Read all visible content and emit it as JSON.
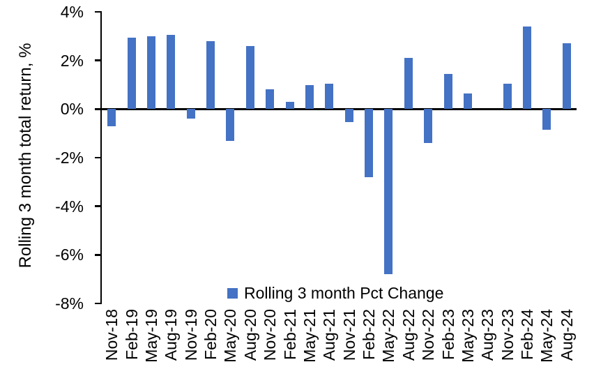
{
  "chart_data": {
    "type": "bar",
    "title": "",
    "xlabel": "",
    "ylabel": "Rolling 3 month total return, %",
    "series_name": "Rolling 3 month Pct Change",
    "legend_position": "bottom-center",
    "grid": false,
    "ylim": [
      -8,
      4
    ],
    "yticks": [
      {
        "value": 4,
        "label": "4%"
      },
      {
        "value": 2,
        "label": "2%"
      },
      {
        "value": 0,
        "label": "0%"
      },
      {
        "value": -2,
        "label": "-2%"
      },
      {
        "value": -4,
        "label": "-4%"
      },
      {
        "value": -6,
        "label": "-6%"
      },
      {
        "value": -8,
        "label": "-8%"
      }
    ],
    "categories": [
      "Nov-18",
      "Feb-19",
      "May-19",
      "Aug-19",
      "Nov-19",
      "Feb-20",
      "May-20",
      "Aug-20",
      "Nov-20",
      "Feb-21",
      "May-21",
      "Aug-21",
      "Nov-21",
      "Feb-22",
      "May-22",
      "Aug-22",
      "Nov-22",
      "Feb-23",
      "May-23",
      "Aug-23",
      "Nov-23",
      "Feb-24",
      "May-24",
      "Aug-24"
    ],
    "values": [
      -0.7,
      2.95,
      3.0,
      3.05,
      -0.4,
      2.8,
      -1.3,
      2.6,
      0.8,
      0.3,
      1.0,
      1.05,
      -0.55,
      -2.8,
      -6.8,
      2.1,
      -1.4,
      1.45,
      0.65,
      0.0,
      1.05,
      3.4,
      -0.85,
      2.7
    ],
    "bar_color": "#4472C4",
    "axis_color": "#000000"
  }
}
